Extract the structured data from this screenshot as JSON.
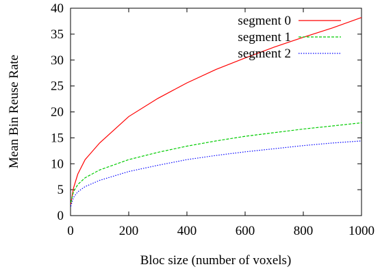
{
  "chart_data": {
    "type": "line",
    "xlabel": "Bloc size (number of voxels)",
    "ylabel": "Mean Bin Reuse Rate",
    "xlim": [
      0,
      1000
    ],
    "ylim": [
      0,
      40
    ],
    "xticks": [
      "0",
      "200",
      "400",
      "600",
      "800",
      "1000"
    ],
    "yticks": [
      "0",
      "5",
      "10",
      "15",
      "20",
      "25",
      "30",
      "35",
      "40"
    ],
    "grid": false,
    "legend_position": "top-right",
    "x": [
      1,
      10,
      25,
      50,
      100,
      200,
      300,
      400,
      500,
      600,
      700,
      800,
      900,
      1000
    ],
    "series": [
      {
        "name": "segment 0",
        "color": "#ff0000",
        "dash": "solid",
        "values": [
          2.2,
          5.3,
          8.0,
          10.8,
          14.0,
          19.1,
          22.6,
          25.6,
          28.2,
          30.4,
          32.5,
          34.4,
          36.2,
          38.2
        ]
      },
      {
        "name": "segment 1",
        "color": "#00cc00",
        "dash": "dashed",
        "values": [
          2.5,
          4.6,
          6.0,
          7.3,
          8.8,
          10.8,
          12.2,
          13.4,
          14.4,
          15.3,
          16.0,
          16.7,
          17.3,
          17.9
        ]
      },
      {
        "name": "segment 2",
        "color": "#0000ff",
        "dash": "dotted",
        "values": [
          1.8,
          3.5,
          4.6,
          5.6,
          6.8,
          8.5,
          9.7,
          10.8,
          11.6,
          12.3,
          12.9,
          13.5,
          14.0,
          14.4
        ]
      }
    ]
  }
}
